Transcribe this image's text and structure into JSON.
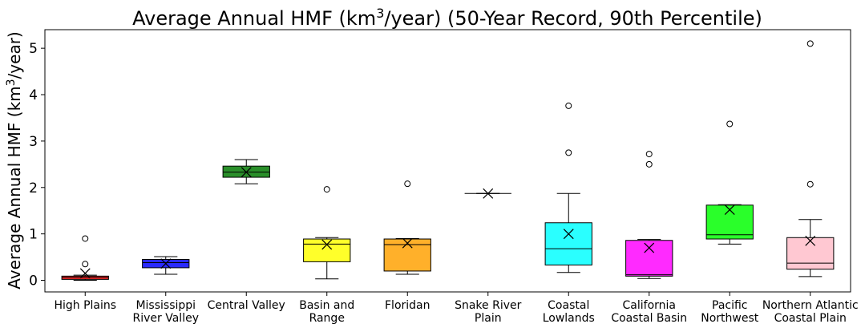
{
  "chart_data": {
    "type": "box",
    "title_main": "Average Annual HMF (km",
    "title_sup": "3",
    "title_rest": "/year) (50-Year Record, 90th Percentile)",
    "ylabel_main": "Average Annual HMF (km",
    "ylabel_sup": "3",
    "ylabel_rest": "/year)",
    "xlabel": "",
    "ylim": [
      -0.25,
      5.4
    ],
    "yticks": [
      "0",
      "1",
      "2",
      "3",
      "4",
      "5"
    ],
    "grid": false,
    "mean_marker": "x",
    "outlier_marker": "circle",
    "categories": [
      {
        "label_lines": [
          "High Plains"
        ],
        "color": "#ff2a2a",
        "whisker_low": 0.0,
        "q1": 0.02,
        "median": 0.06,
        "q3": 0.09,
        "whisker_high": 0.11,
        "mean": 0.15,
        "outliers": [
          0.35,
          0.9
        ]
      },
      {
        "label_lines": [
          "Mississippi",
          " River Valley"
        ],
        "color": "#2a2aff",
        "whisker_low": 0.13,
        "q1": 0.27,
        "median": 0.38,
        "q3": 0.45,
        "whisker_high": 0.51,
        "mean": 0.36,
        "outliers": []
      },
      {
        "label_lines": [
          "Central Valley"
        ],
        "color": "#2a8f2a",
        "whisker_low": 2.08,
        "q1": 2.22,
        "median": 2.33,
        "q3": 2.46,
        "whisker_high": 2.6,
        "mean": 2.33,
        "outliers": []
      },
      {
        "label_lines": [
          "Basin and",
          " Range"
        ],
        "color": "#ffff2a",
        "whisker_low": 0.03,
        "q1": 0.4,
        "median": 0.78,
        "q3": 0.89,
        "whisker_high": 0.92,
        "mean": 0.77,
        "outliers": [
          1.96
        ]
      },
      {
        "label_lines": [
          "Floridan"
        ],
        "color": "#ffb02a",
        "whisker_low": 0.13,
        "q1": 0.2,
        "median": 0.77,
        "q3": 0.89,
        "whisker_high": 0.9,
        "mean": 0.8,
        "outliers": [
          2.08
        ]
      },
      {
        "label_lines": [
          "Snake River",
          " Plain"
        ],
        "color": "#ffffff",
        "whisker_low": 1.87,
        "q1": 1.87,
        "median": 1.87,
        "q3": 1.87,
        "whisker_high": 1.87,
        "mean": 1.87,
        "outliers": []
      },
      {
        "label_lines": [
          "Coastal",
          " Lowlands"
        ],
        "color": "#2affff",
        "whisker_low": 0.17,
        "q1": 0.33,
        "median": 0.68,
        "q3": 1.24,
        "whisker_high": 1.87,
        "mean": 1.0,
        "outliers": [
          2.75,
          3.76
        ]
      },
      {
        "label_lines": [
          "California",
          "Coastal Basin"
        ],
        "color": "#ff2aff",
        "whisker_low": 0.04,
        "q1": 0.09,
        "median": 0.12,
        "q3": 0.86,
        "whisker_high": 0.88,
        "mean": 0.7,
        "outliers": [
          2.5,
          2.72
        ]
      },
      {
        "label_lines": [
          "Pacific",
          " Northwest"
        ],
        "color": "#2aff2a",
        "whisker_low": 0.78,
        "q1": 0.89,
        "median": 0.98,
        "q3": 1.62,
        "whisker_high": 1.63,
        "mean": 1.52,
        "outliers": [
          3.37
        ]
      },
      {
        "label_lines": [
          "Northern Atlantic",
          "Coastal Plain"
        ],
        "color": "#ffc8d2",
        "whisker_low": 0.08,
        "q1": 0.24,
        "median": 0.37,
        "q3": 0.92,
        "whisker_high": 1.31,
        "mean": 0.85,
        "outliers": [
          2.07,
          5.1
        ]
      }
    ]
  }
}
